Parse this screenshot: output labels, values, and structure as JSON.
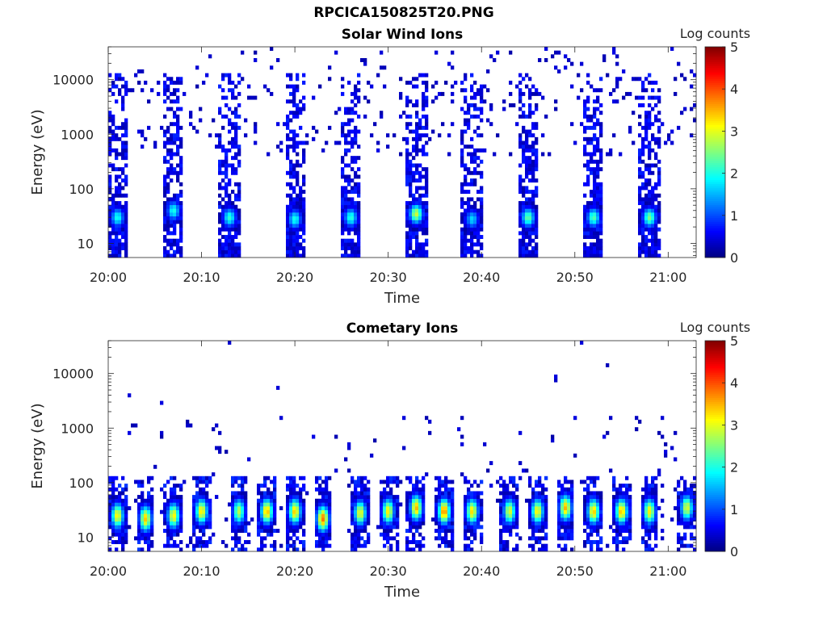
{
  "figure_title": "RPCICA150825T20.PNG",
  "chart_data": [
    {
      "type": "heatmap",
      "title": "Solar Wind Ions",
      "xlabel": "Time",
      "ylabel": "Energy (eV)",
      "x_ticks": [
        "20:00",
        "20:10",
        "20:20",
        "20:30",
        "20:40",
        "20:50",
        "21:00"
      ],
      "x_range": [
        "20:00",
        "21:03"
      ],
      "y_ticks": [
        "10",
        "100",
        "1000",
        "10000"
      ],
      "y_scale": "log",
      "y_range": [
        5.5,
        40000
      ],
      "colorbar": {
        "label": "Log counts",
        "ticks": [
          "0",
          "1",
          "2",
          "3",
          "4",
          "5"
        ],
        "range": [
          0,
          5
        ],
        "colormap": "jet"
      },
      "bursts": [
        {
          "time": "20:01",
          "peak_energy": 30,
          "peak_log_counts": 2.0
        },
        {
          "time": "20:07",
          "peak_energy": 40,
          "peak_log_counts": 2.0
        },
        {
          "time": "20:13",
          "peak_energy": 30,
          "peak_log_counts": 2.1
        },
        {
          "time": "20:20",
          "peak_energy": 28,
          "peak_log_counts": 2.0
        },
        {
          "time": "20:26",
          "peak_energy": 30,
          "peak_log_counts": 2.1
        },
        {
          "time": "20:33",
          "peak_energy": 35,
          "peak_log_counts": 2.9
        },
        {
          "time": "20:39",
          "peak_energy": 28,
          "peak_log_counts": 1.7
        },
        {
          "time": "20:45",
          "peak_energy": 30,
          "peak_log_counts": 2.4
        },
        {
          "time": "20:52",
          "peak_energy": 30,
          "peak_log_counts": 2.3
        },
        {
          "time": "20:58",
          "peak_energy": 30,
          "peak_log_counts": 2.5
        }
      ]
    },
    {
      "type": "heatmap",
      "title": "Cometary Ions",
      "xlabel": "Time",
      "ylabel": "Energy (eV)",
      "x_ticks": [
        "20:00",
        "20:10",
        "20:20",
        "20:30",
        "20:40",
        "20:50",
        "21:00"
      ],
      "x_range": [
        "20:00",
        "21:03"
      ],
      "y_ticks": [
        "10",
        "100",
        "1000",
        "10000"
      ],
      "y_scale": "log",
      "y_range": [
        5.5,
        40000
      ],
      "colorbar": {
        "label": "Log counts",
        "ticks": [
          "0",
          "1",
          "2",
          "3",
          "4",
          "5"
        ],
        "range": [
          0,
          5
        ],
        "colormap": "jet"
      },
      "bursts": [
        {
          "time": "20:01",
          "peak_energy": 25,
          "peak_log_counts": 3.2
        },
        {
          "time": "20:04",
          "peak_energy": 22,
          "peak_log_counts": 3.4
        },
        {
          "time": "20:07",
          "peak_energy": 25,
          "peak_log_counts": 3.2
        },
        {
          "time": "20:10",
          "peak_energy": 30,
          "peak_log_counts": 3.3
        },
        {
          "time": "20:14",
          "peak_energy": 30,
          "peak_log_counts": 2.8
        },
        {
          "time": "20:17",
          "peak_energy": 30,
          "peak_log_counts": 3.5
        },
        {
          "time": "20:20",
          "peak_energy": 30,
          "peak_log_counts": 3.4
        },
        {
          "time": "20:23",
          "peak_energy": 22,
          "peak_log_counts": 3.8
        },
        {
          "time": "20:27",
          "peak_energy": 28,
          "peak_log_counts": 3.1
        },
        {
          "time": "20:30",
          "peak_energy": 30,
          "peak_log_counts": 3.2
        },
        {
          "time": "20:33",
          "peak_energy": 35,
          "peak_log_counts": 3.5
        },
        {
          "time": "20:36",
          "peak_energy": 30,
          "peak_log_counts": 3.8
        },
        {
          "time": "20:39",
          "peak_energy": 30,
          "peak_log_counts": 3.3
        },
        {
          "time": "20:43",
          "peak_energy": 30,
          "peak_log_counts": 3.0
        },
        {
          "time": "20:46",
          "peak_energy": 30,
          "peak_log_counts": 3.2
        },
        {
          "time": "20:49",
          "peak_energy": 35,
          "peak_log_counts": 3.5
        },
        {
          "time": "20:52",
          "peak_energy": 30,
          "peak_log_counts": 3.4
        },
        {
          "time": "20:55",
          "peak_energy": 30,
          "peak_log_counts": 3.5
        },
        {
          "time": "20:58",
          "peak_energy": 30,
          "peak_log_counts": 3.2
        },
        {
          "time": "21:02",
          "peak_energy": 35,
          "peak_log_counts": 3.0
        }
      ]
    }
  ]
}
